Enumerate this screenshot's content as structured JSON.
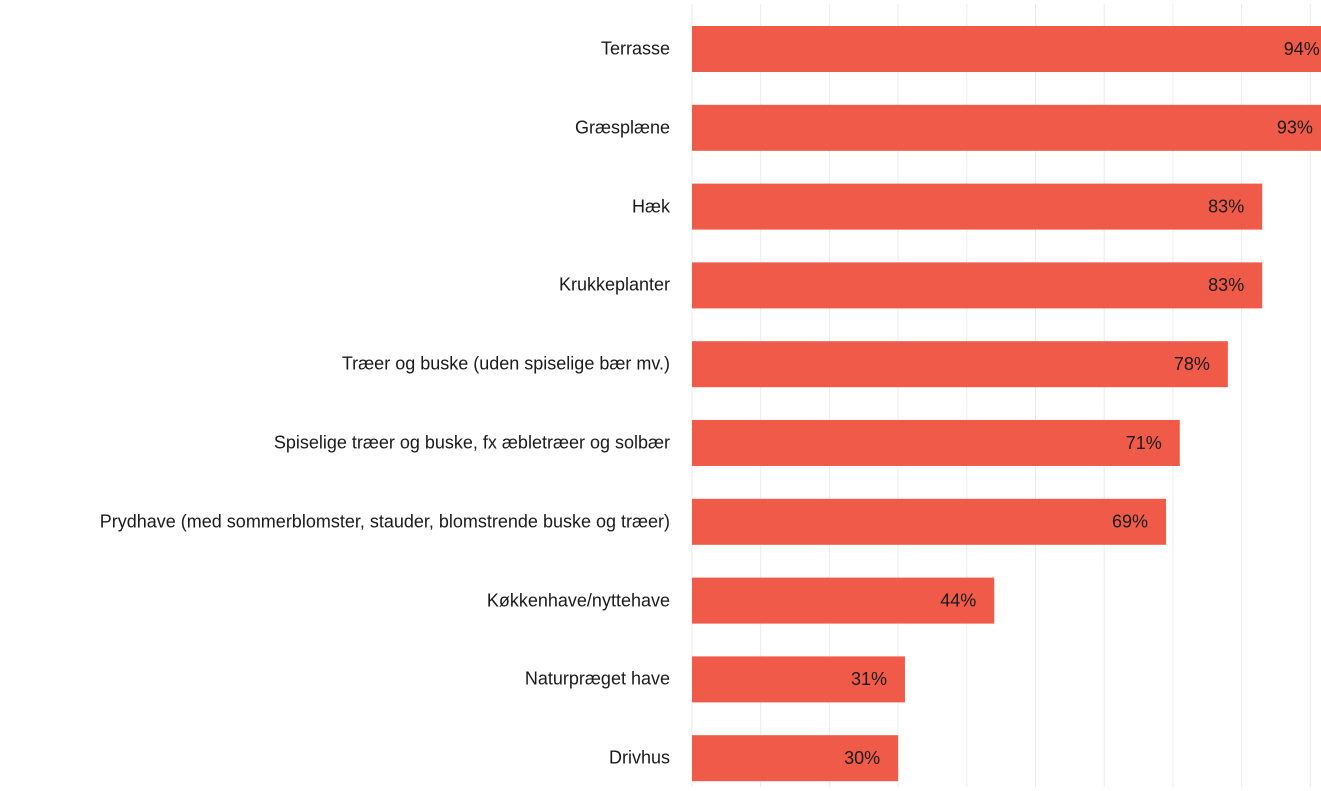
{
  "chart_data": {
    "type": "barh",
    "categories": [
      "Terrasse",
      "Græsplæne",
      "Hæk",
      "Krukkeplanter",
      "Træer og buske (uden spiselige bær mv.)",
      "Spiselige træer og buske, fx æbletræer og solbær",
      "Prydhave (med sommerblomster, stauder, blomstrende buske og træer)",
      "Køkkenhave/nyttehave",
      "Naturpræget have",
      "Drivhus"
    ],
    "values": [
      94,
      93,
      83,
      83,
      78,
      71,
      69,
      44,
      31,
      30
    ],
    "value_labels": [
      "94%",
      "93%",
      "83%",
      "83%",
      "78%",
      "71%",
      "69%",
      "44%",
      "31%",
      "30%"
    ],
    "color": "#ef5b48",
    "xlim": [
      0,
      100
    ],
    "xticks": [
      0,
      10,
      20,
      30,
      40,
      50,
      60,
      70,
      80,
      90
    ],
    "grid": true
  }
}
